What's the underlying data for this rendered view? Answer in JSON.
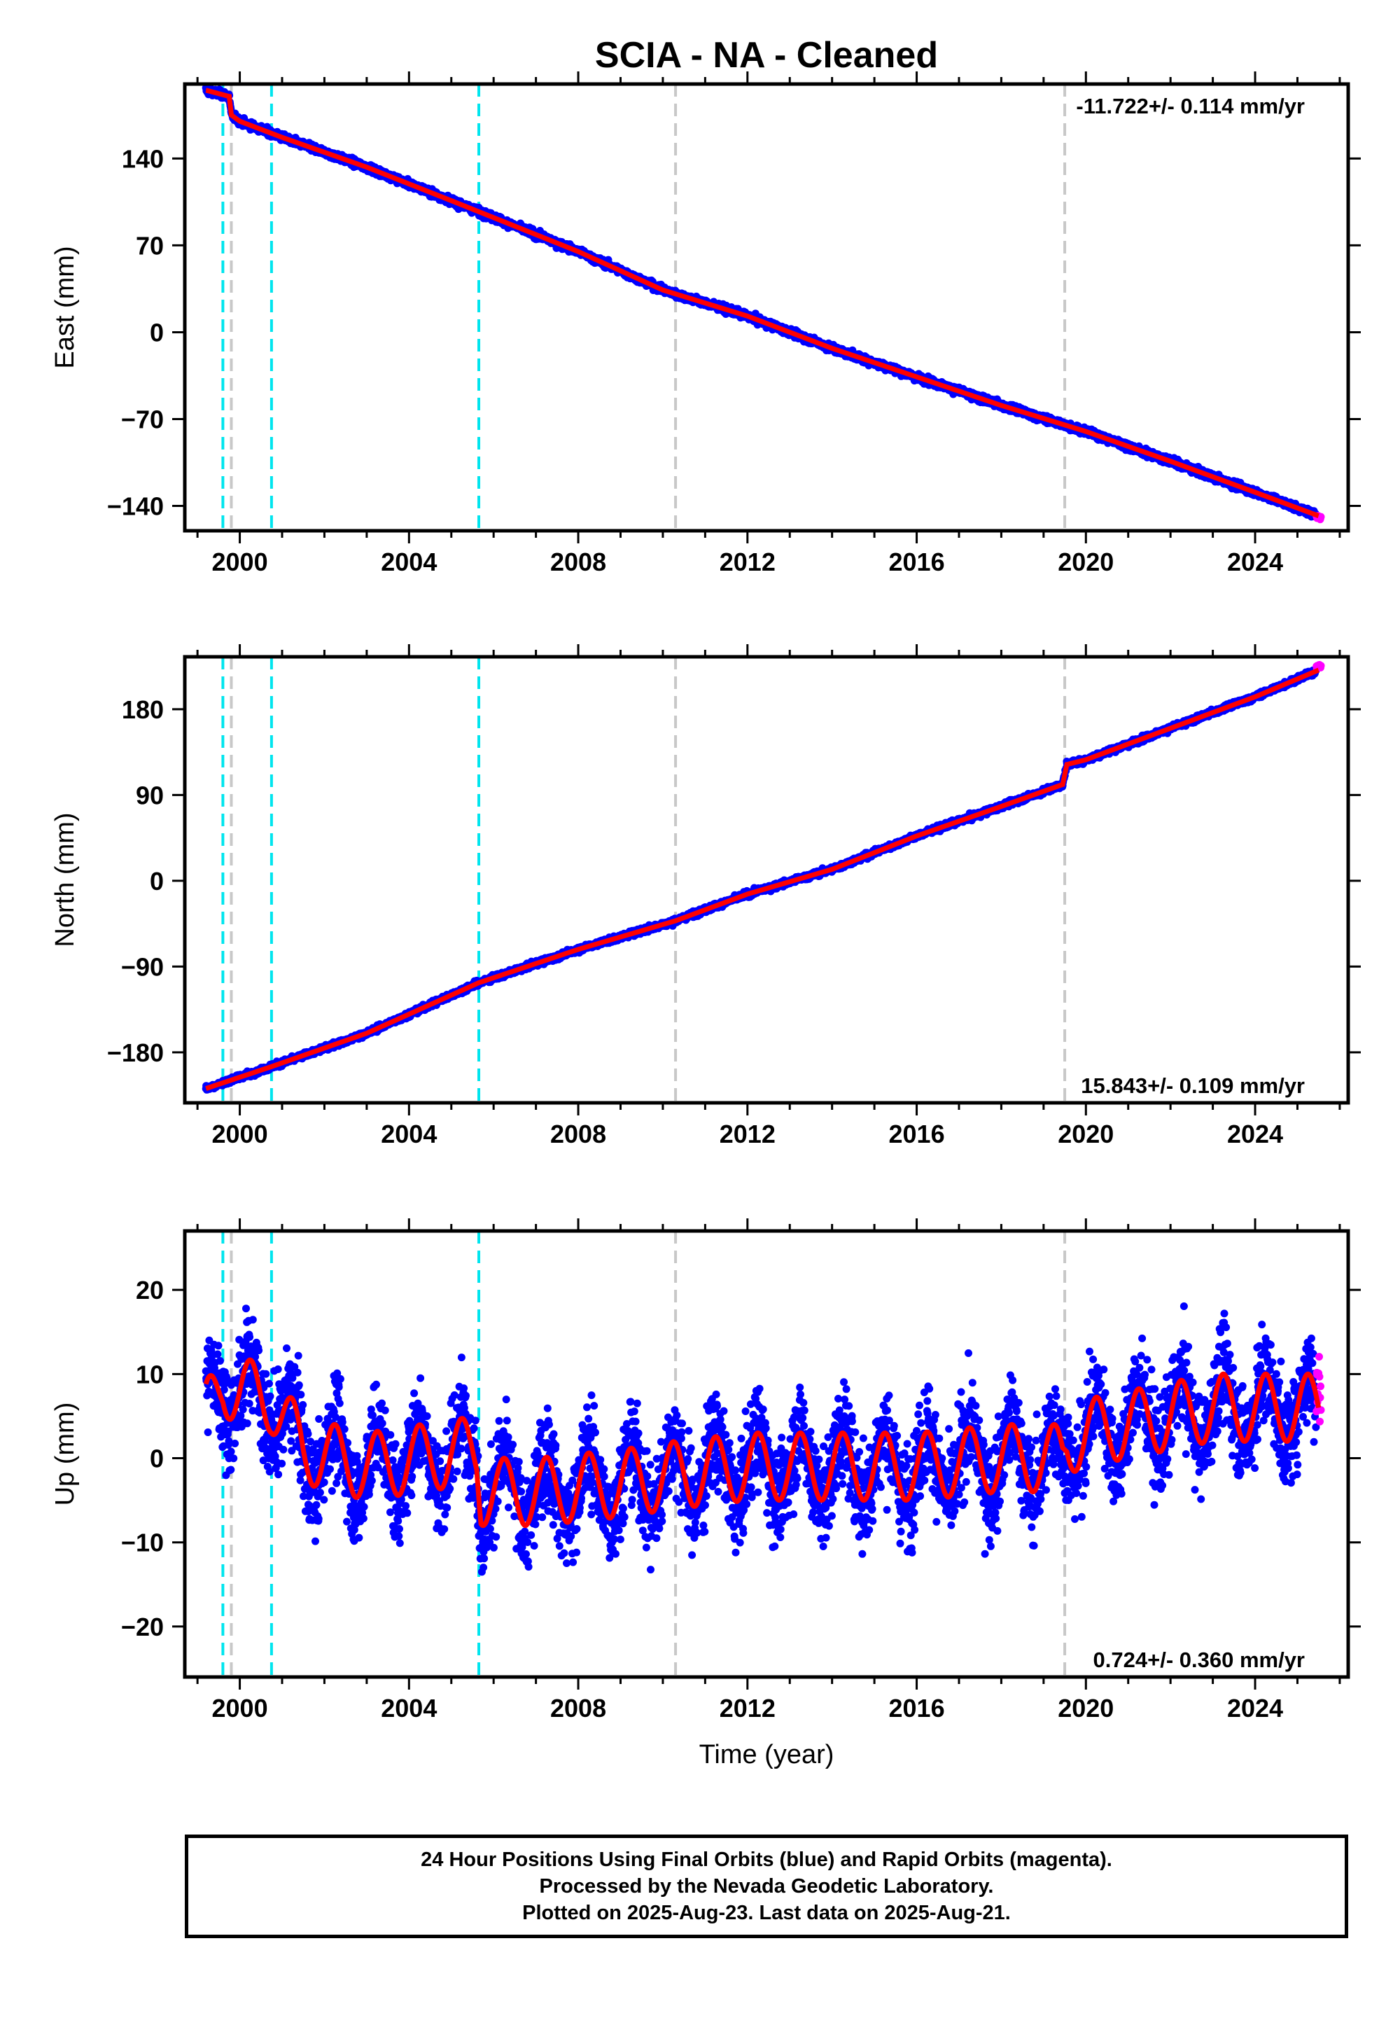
{
  "title": "SCIA  - NA - Cleaned",
  "xlabel": "Time (year)",
  "footer": {
    "line1": "24 Hour Positions Using Final Orbits (blue) and Rapid Orbits (magenta).",
    "line2": "Processed by the Nevada Geodetic Laboratory.",
    "line3": "Plotted on 2025-Aug-23. Last data on 2025-Aug-21."
  },
  "colors": {
    "final_orbits": "#0000ff",
    "rapid_orbits": "#ff00ff",
    "model": "#ff0000",
    "equipment_change": "#00e5ee",
    "earthquake": "#c8c8c8"
  },
  "chart_data": [
    {
      "type": "scatter",
      "panel": "east",
      "ylabel": "East (mm)",
      "rate_label": "-11.722+/- 0.114 mm/yr",
      "rate_position": "top-right",
      "xlim": [
        1998.7,
        2026.2
      ],
      "ylim": [
        -160,
        200
      ],
      "xticks": [
        2000,
        2004,
        2008,
        2012,
        2016,
        2020,
        2024
      ],
      "yticks": [
        -140,
        -70,
        0,
        70,
        140
      ],
      "equipment_change_years": [
        1999.6,
        2000.75,
        2005.65
      ],
      "earthquake_years": [
        1999.8,
        2010.3,
        2019.5
      ],
      "model_knots": [
        [
          1999.2,
          195
        ],
        [
          1999.75,
          190
        ],
        [
          1999.8,
          175
        ],
        [
          2000.0,
          170
        ],
        [
          2001,
          157
        ],
        [
          2003,
          133
        ],
        [
          2005,
          106
        ],
        [
          2008,
          65
        ],
        [
          2010,
          34
        ],
        [
          2012,
          13
        ],
        [
          2014,
          -13
        ],
        [
          2016,
          -36
        ],
        [
          2018,
          -59
        ],
        [
          2020,
          -80
        ],
        [
          2022,
          -104
        ],
        [
          2024,
          -129
        ],
        [
          2025.5,
          -148
        ]
      ],
      "rapid_end": [
        2025.55,
        -149
      ]
    },
    {
      "type": "scatter",
      "panel": "north",
      "ylabel": "North (mm)",
      "rate_label": "15.843+/- 0.109 mm/yr",
      "rate_position": "bottom-right",
      "xlim": [
        1998.7,
        2026.2
      ],
      "ylim": [
        -233,
        235
      ],
      "xticks": [
        2000,
        2004,
        2008,
        2012,
        2016,
        2020,
        2024
      ],
      "yticks": [
        -180,
        -90,
        0,
        90,
        180
      ],
      "equipment_change_years": [
        1999.6,
        2000.75,
        2005.65
      ],
      "earthquake_years": [
        1999.8,
        2010.3,
        2019.5
      ],
      "model_knots": [
        [
          1999.2,
          -218
        ],
        [
          2000.75,
          -195
        ],
        [
          2003,
          -160
        ],
        [
          2005.65,
          -107
        ],
        [
          2008,
          -72
        ],
        [
          2010.3,
          -42
        ],
        [
          2012,
          -14
        ],
        [
          2014,
          12
        ],
        [
          2016,
          47
        ],
        [
          2018,
          78
        ],
        [
          2019.45,
          101
        ],
        [
          2019.55,
          122
        ],
        [
          2020,
          127
        ],
        [
          2022,
          160
        ],
        [
          2024,
          193
        ],
        [
          2025.55,
          222
        ]
      ],
      "rapid_end": [
        2025.55,
        225
      ]
    },
    {
      "type": "scatter",
      "panel": "up",
      "ylabel": "Up (mm)",
      "rate_label": "0.724+/- 0.360 mm/yr",
      "rate_position": "bottom-right",
      "xlim": [
        1998.7,
        2026.2
      ],
      "ylim": [
        -26,
        27
      ],
      "xticks": [
        2000,
        2004,
        2008,
        2012,
        2016,
        2020,
        2024
      ],
      "yticks": [
        -20,
        -10,
        0,
        10,
        20
      ],
      "equipment_change_years": [
        1999.6,
        2000.75,
        2005.65
      ],
      "earthquake_years": [
        1999.8,
        2010.3,
        2019.5
      ],
      "model_knots": [
        [
          1999.2,
          5
        ],
        [
          1999.6,
          9
        ],
        [
          2000,
          8
        ],
        [
          2000.75,
          7
        ],
        [
          2001.5,
          1
        ],
        [
          2003,
          -1
        ],
        [
          2005.6,
          1
        ],
        [
          2005.7,
          -4
        ],
        [
          2007,
          -4
        ],
        [
          2009,
          -3
        ],
        [
          2010.3,
          -2
        ],
        [
          2012,
          -1
        ],
        [
          2014,
          -1
        ],
        [
          2016,
          -1
        ],
        [
          2018,
          0
        ],
        [
          2019.45,
          0
        ],
        [
          2019.55,
          2
        ],
        [
          2020,
          3
        ],
        [
          2021,
          4
        ],
        [
          2022,
          5
        ],
        [
          2023,
          6
        ],
        [
          2024,
          6
        ],
        [
          2025.5,
          6
        ]
      ],
      "seasonal_amplitude": 4,
      "rapid_end": [
        2025.55,
        8
      ]
    }
  ]
}
